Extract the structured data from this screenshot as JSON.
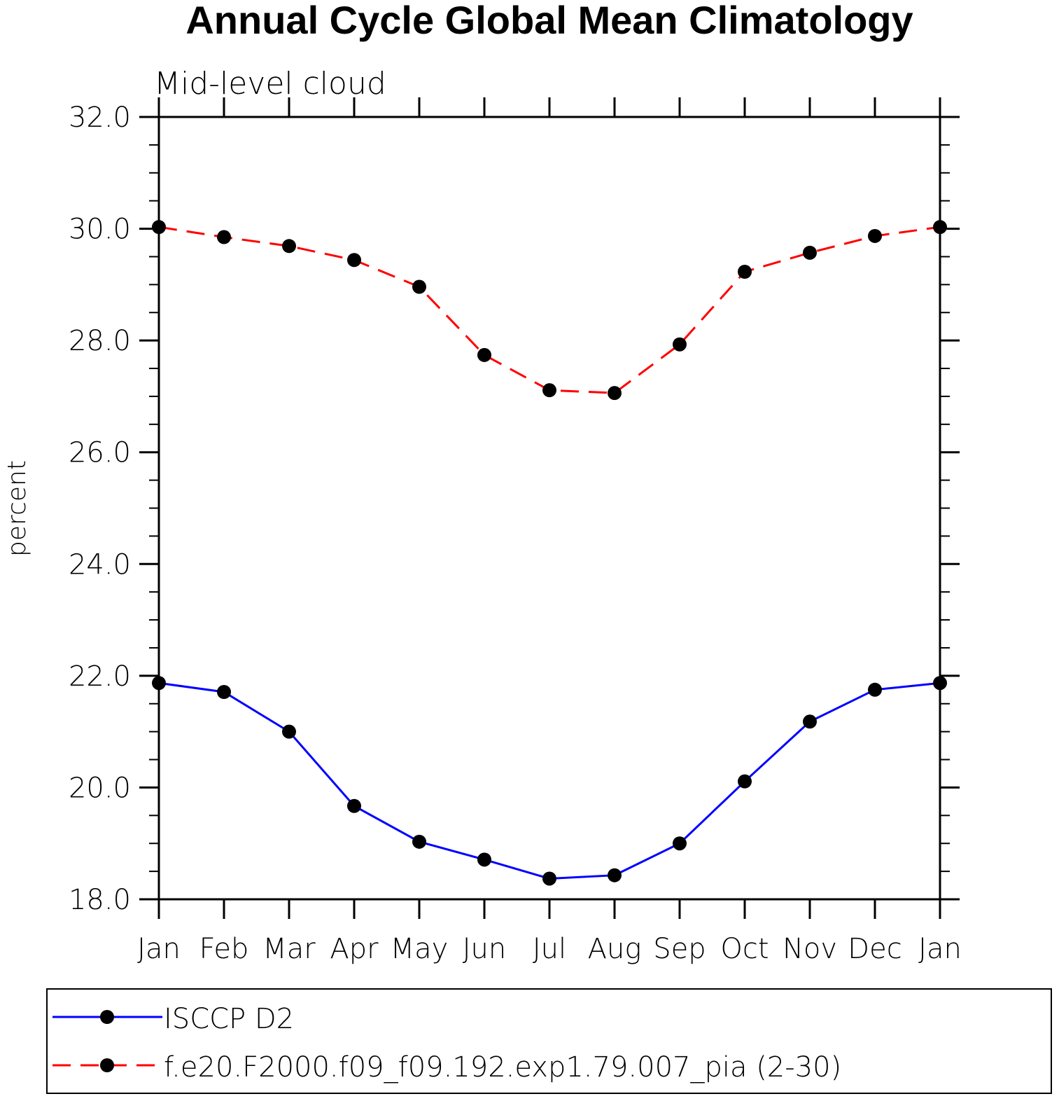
{
  "chart_data": {
    "type": "line",
    "title": "Annual Cycle Global Mean Climatology",
    "subtitle": "Mid-level cloud",
    "xlabel": "",
    "ylabel": "percent",
    "categories": [
      "Jan",
      "Feb",
      "Mar",
      "Apr",
      "May",
      "Jun",
      "Jul",
      "Aug",
      "Sep",
      "Oct",
      "Nov",
      "Dec",
      "Jan"
    ],
    "ylim": [
      18.0,
      32.0
    ],
    "yticks": [
      "18.0",
      "20.0",
      "22.0",
      "24.0",
      "26.0",
      "28.0",
      "30.0",
      "32.0"
    ],
    "grid": false,
    "legend_position": "bottom",
    "series": [
      {
        "name": "ISCCP D2",
        "color": "#0000ff",
        "line_style": "solid",
        "marker": "filled-circle",
        "values": [
          21.87,
          21.71,
          21.0,
          19.67,
          19.03,
          18.71,
          18.37,
          18.43,
          19.0,
          20.11,
          21.18,
          21.75,
          21.87
        ]
      },
      {
        "name": "f.e20.F2000.f09_f09.192.exp1.79.007_pia (2-30)",
        "color": "#ff0000",
        "line_style": "dashed",
        "marker": "filled-circle",
        "values": [
          30.03,
          29.85,
          29.69,
          29.44,
          28.96,
          27.74,
          27.11,
          27.06,
          27.93,
          29.23,
          29.57,
          29.87,
          30.03
        ]
      }
    ]
  }
}
